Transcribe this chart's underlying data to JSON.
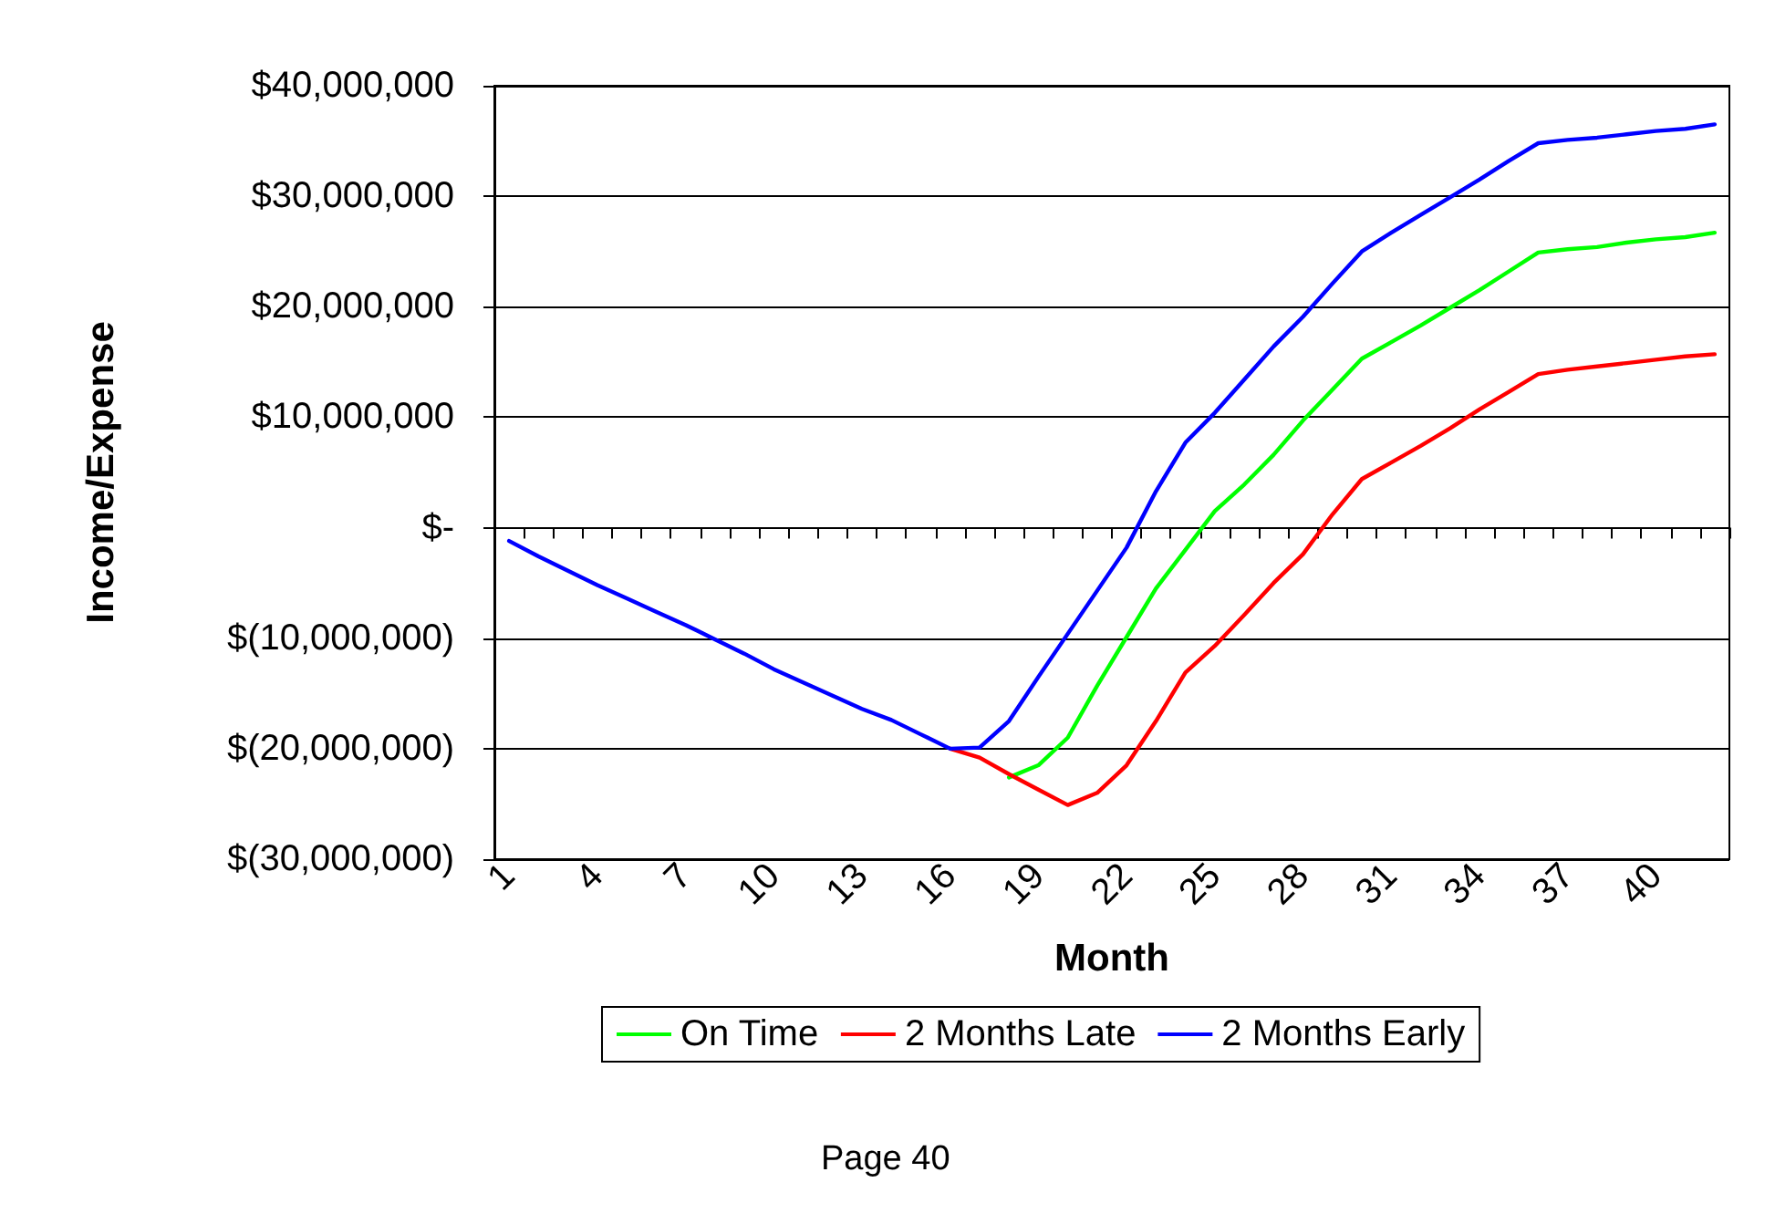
{
  "chart_data": {
    "type": "line",
    "xlabel": "Month",
    "ylabel": "Income/Expense",
    "categories": [
      "1",
      null,
      null,
      "4",
      null,
      null,
      "7",
      null,
      null,
      "10",
      null,
      null,
      "13",
      null,
      null,
      "16",
      null,
      null,
      "19",
      null,
      null,
      "22",
      null,
      null,
      "25",
      null,
      null,
      "28",
      null,
      null,
      "31",
      null,
      null,
      "34",
      null,
      null,
      "37",
      null,
      null,
      "40",
      null,
      null
    ],
    "series": [
      {
        "name": "On Time",
        "color": "#00ff00",
        "values": [
          null,
          null,
          null,
          null,
          null,
          null,
          null,
          null,
          null,
          null,
          null,
          null,
          null,
          null,
          null,
          null,
          null,
          -22600000,
          -21500000,
          -19000000,
          -14300000,
          -9900000,
          -5500000,
          -2000000,
          1500000,
          3900000,
          6600000,
          9700000,
          12500000,
          15300000,
          16800000,
          18300000,
          19900000,
          21500000,
          23200000,
          24900000,
          25200000,
          25400000,
          25800000,
          26100000,
          26300000,
          26700000
        ]
      },
      {
        "name": "2 Months Late",
        "color": "#ff0000",
        "values": [
          null,
          null,
          null,
          null,
          null,
          null,
          null,
          null,
          null,
          null,
          null,
          null,
          null,
          null,
          null,
          -20000000,
          -20800000,
          -22300000,
          -23700000,
          -25100000,
          -24000000,
          -21500000,
          -17500000,
          -13100000,
          -10700000,
          -7900000,
          -5000000,
          -2400000,
          1200000,
          4400000,
          5900000,
          7400000,
          9000000,
          10700000,
          12300000,
          13900000,
          14300000,
          14600000,
          14900000,
          15200000,
          15500000,
          15700000
        ]
      },
      {
        "name": "2 Months Early",
        "color": "#0000ff",
        "values": [
          -1200000,
          -2600000,
          -3900000,
          -5200000,
          -6400000,
          -7600000,
          -8800000,
          -10100000,
          -11400000,
          -12800000,
          -14000000,
          -15200000,
          -16400000,
          -17400000,
          -18700000,
          -20000000,
          -19900000,
          -17500000,
          -13500000,
          -9600000,
          -5700000,
          -1800000,
          3300000,
          7700000,
          10400000,
          13400000,
          16400000,
          19100000,
          22100000,
          25000000,
          26700000,
          28300000,
          29900000,
          31500000,
          33200000,
          34800000,
          35100000,
          35300000,
          35600000,
          35900000,
          36100000,
          36500000
        ]
      }
    ],
    "ylim": [
      -30000000,
      40000000
    ],
    "yticks": [
      {
        "value": -30000000,
        "label": "$(30,000,000)"
      },
      {
        "value": -20000000,
        "label": "$(20,000,000)"
      },
      {
        "value": -10000000,
        "label": "$(10,000,000)"
      },
      {
        "value": 0,
        "label": "$-"
      },
      {
        "value": 10000000,
        "label": "$10,000,000"
      },
      {
        "value": 20000000,
        "label": "$20,000,000"
      },
      {
        "value": 30000000,
        "label": "$30,000,000"
      },
      {
        "value": 40000000,
        "label": "$40,000,000"
      }
    ],
    "grid": "y",
    "legend": "bottom",
    "marker": "none",
    "line_style": "solid",
    "annotations": [
      "Page 40"
    ]
  }
}
